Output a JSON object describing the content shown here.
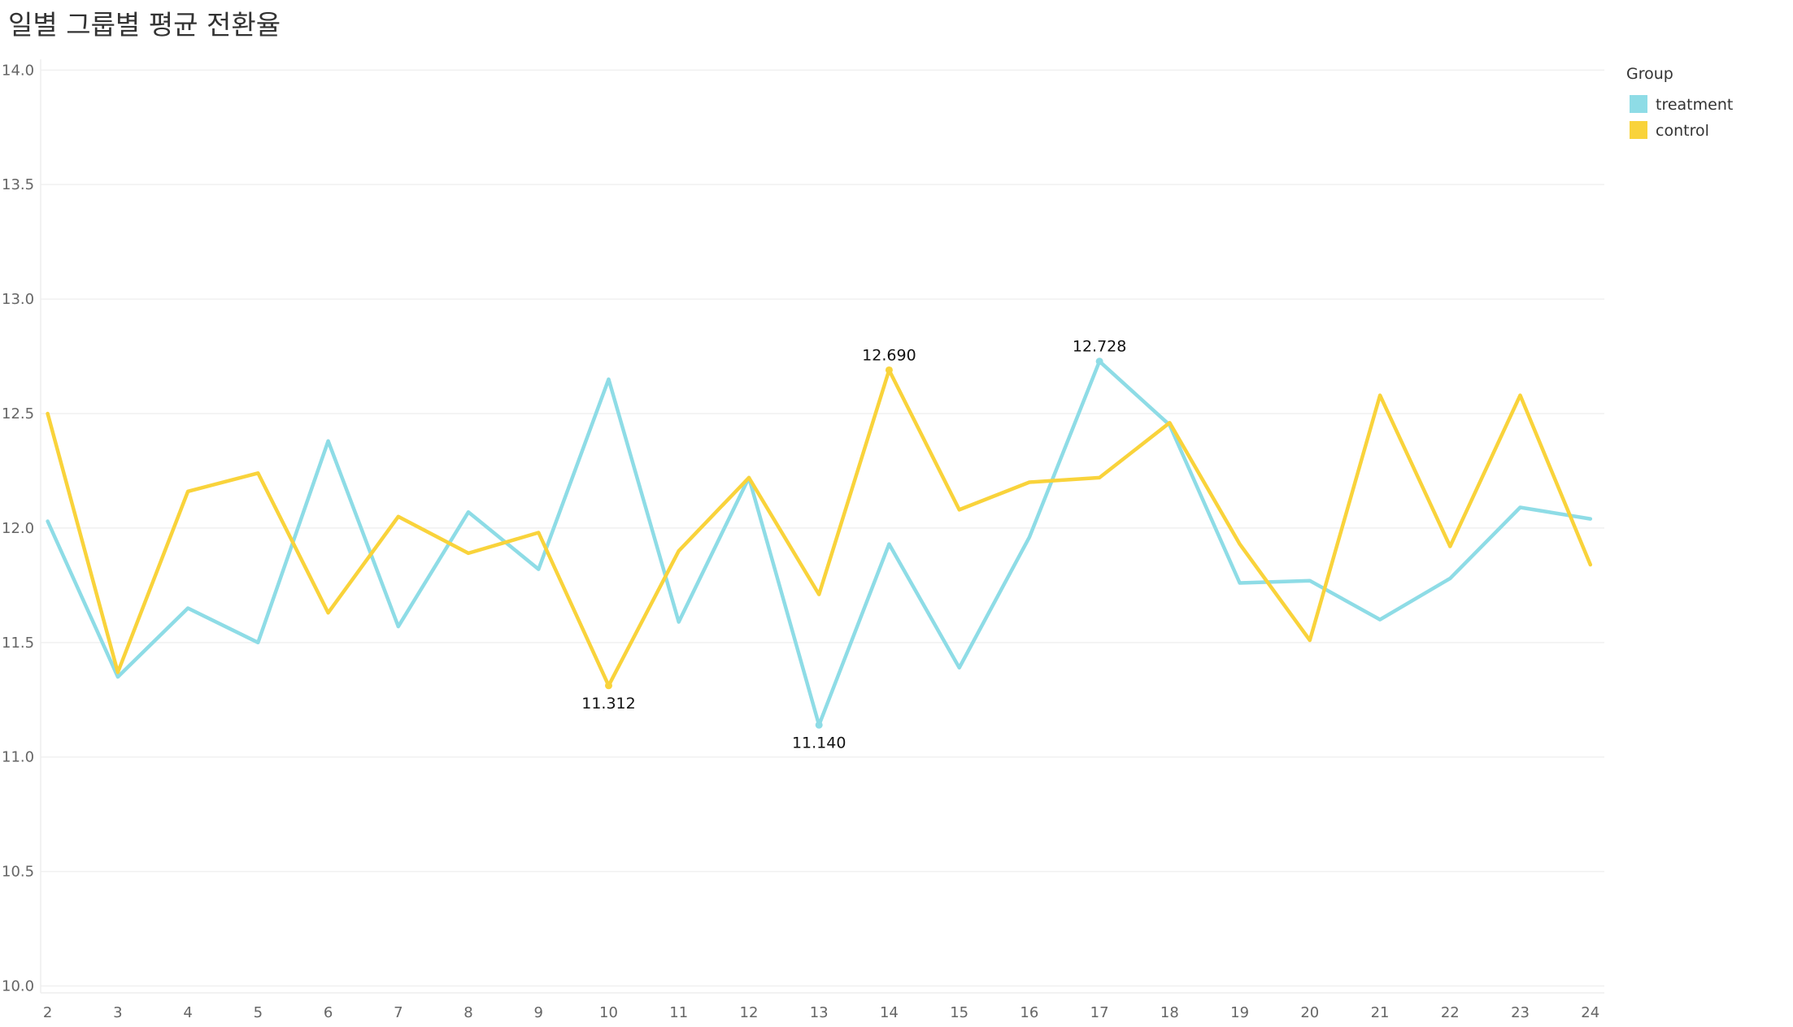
{
  "chart_data": {
    "type": "line",
    "title": "일별 그룹별 평균 전환율",
    "xlabel": "",
    "ylabel": "",
    "x": [
      2,
      3,
      4,
      5,
      6,
      7,
      8,
      9,
      10,
      11,
      12,
      13,
      14,
      15,
      16,
      17,
      18,
      19,
      20,
      21,
      22,
      23,
      24
    ],
    "xlim": [
      1.9,
      24.2
    ],
    "ylim": [
      9.97,
      14.04
    ],
    "yticks": [
      10.0,
      10.5,
      11.0,
      11.5,
      12.0,
      12.5,
      13.0,
      13.5,
      14.0
    ],
    "ytick_labels": [
      "10.0",
      "10.5",
      "11.0",
      "11.5",
      "12.0",
      "12.5",
      "13.0",
      "13.5",
      "14.0"
    ],
    "grid": true,
    "legend": {
      "title": "Group",
      "placement": "top-right"
    },
    "series": [
      {
        "name": "treatment",
        "color": "#8EDCE6",
        "values": [
          12.03,
          11.35,
          11.65,
          11.5,
          12.38,
          11.57,
          12.07,
          11.82,
          12.65,
          11.59,
          12.22,
          11.14,
          11.93,
          11.39,
          11.96,
          12.728,
          12.45,
          11.76,
          11.77,
          11.6,
          11.78,
          12.09,
          12.04
        ]
      },
      {
        "name": "control",
        "color": "#F9D33B",
        "values": [
          12.5,
          11.37,
          12.16,
          12.24,
          11.63,
          12.05,
          11.89,
          11.98,
          11.312,
          11.9,
          12.22,
          11.71,
          12.69,
          12.08,
          12.2,
          12.22,
          12.46,
          11.93,
          11.51,
          12.58,
          11.92,
          12.58,
          11.84
        ]
      }
    ],
    "annotations": [
      {
        "series": "control",
        "x": 10,
        "y": 11.312,
        "text": "11.312",
        "position": "below"
      },
      {
        "series": "treatment",
        "x": 13,
        "y": 11.14,
        "text": "11.140",
        "position": "below"
      },
      {
        "series": "control",
        "x": 14,
        "y": 12.69,
        "text": "12.690",
        "position": "above"
      },
      {
        "series": "treatment",
        "x": 17,
        "y": 12.728,
        "text": "12.728",
        "position": "above"
      }
    ]
  }
}
